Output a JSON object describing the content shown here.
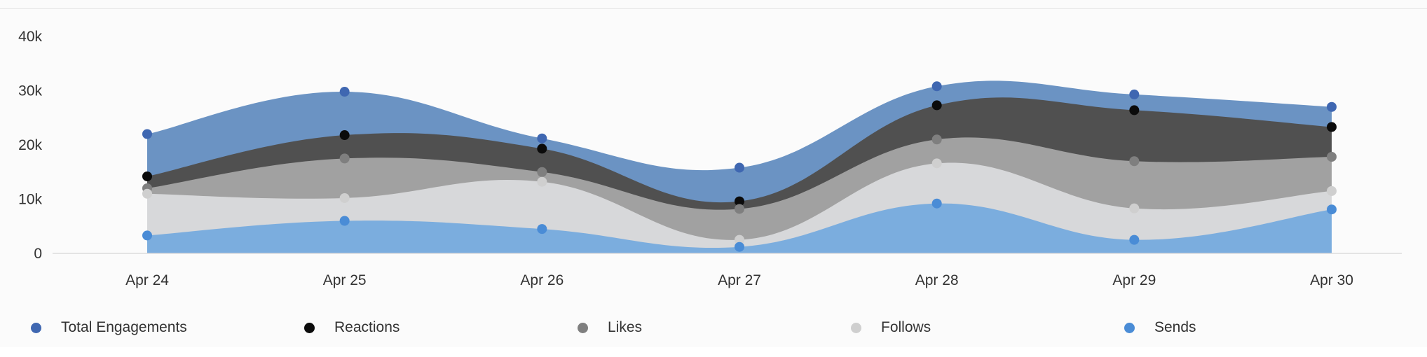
{
  "chart_data": {
    "type": "area",
    "stacked": false,
    "categories": [
      "Apr 24",
      "Apr 25",
      "Apr 26",
      "Apr 27",
      "Apr 28",
      "Apr 29",
      "Apr 30"
    ],
    "series": [
      {
        "name": "Total Engagements",
        "color": "#6b93c3",
        "marker_color": "#3f67b1",
        "values": [
          22000,
          29800,
          21200,
          15800,
          30800,
          29300,
          27000
        ]
      },
      {
        "name": "Reactions",
        "color": "#505050",
        "marker_color": "#0b0b0b",
        "values": [
          14200,
          21800,
          19300,
          9600,
          27300,
          26400,
          23300
        ]
      },
      {
        "name": "Likes",
        "color": "#a1a1a1",
        "marker_color": "#7f7f7f",
        "values": [
          12000,
          17500,
          15000,
          8200,
          21000,
          17000,
          17800
        ]
      },
      {
        "name": "Follows",
        "color": "#d7d8da",
        "marker_color": "#cfcfcf",
        "values": [
          11000,
          10200,
          13200,
          2500,
          16600,
          8300,
          11500
        ]
      },
      {
        "name": "Sends",
        "color": "#7badde",
        "marker_color": "#4a8cd6",
        "values": [
          3300,
          6000,
          4500,
          1200,
          9200,
          2500,
          8100
        ]
      }
    ],
    "y_ticks": [
      "0",
      "10k",
      "20k",
      "30k",
      "40k"
    ],
    "ylim": [
      0,
      40000
    ],
    "grid": false,
    "legend_position": "bottom"
  }
}
